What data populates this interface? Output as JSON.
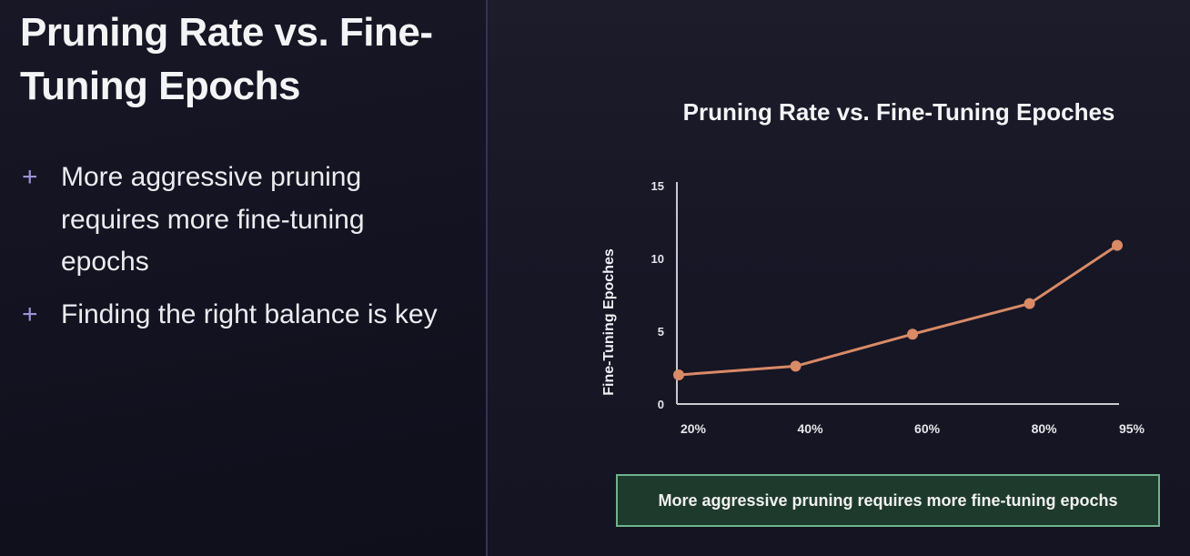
{
  "slide": {
    "title": "Pruning Rate vs. Fine-Tuning Epochs",
    "bullets": [
      "More aggressive pruning requires more fine-tuning epochs",
      "Finding the right balance is key"
    ],
    "bullet_icon": "+",
    "callout": "More aggressive pruning requires more fine-tuning epochs"
  },
  "colors": {
    "background": "#131320",
    "accent": "#9c93d6",
    "line": "#d98a66",
    "callout_border": "#6fb38c",
    "callout_fill": "#1e3a2c"
  },
  "chart_data": {
    "type": "line",
    "title": "Pruning Rate vs. Fine-Tuning Epoches",
    "xlabel": "",
    "ylabel": "Fine-Tuning Epoches",
    "categories": [
      "20%",
      "40%",
      "60%",
      "80%",
      "95%"
    ],
    "x": [
      20,
      40,
      60,
      80,
      95
    ],
    "series": [
      {
        "values": [
          2,
          2.6,
          4.8,
          6.9,
          10.9
        ]
      }
    ],
    "ylim": [
      0,
      15
    ],
    "yticks": [
      0,
      5,
      10,
      15
    ],
    "grid": false,
    "legend": "none"
  }
}
